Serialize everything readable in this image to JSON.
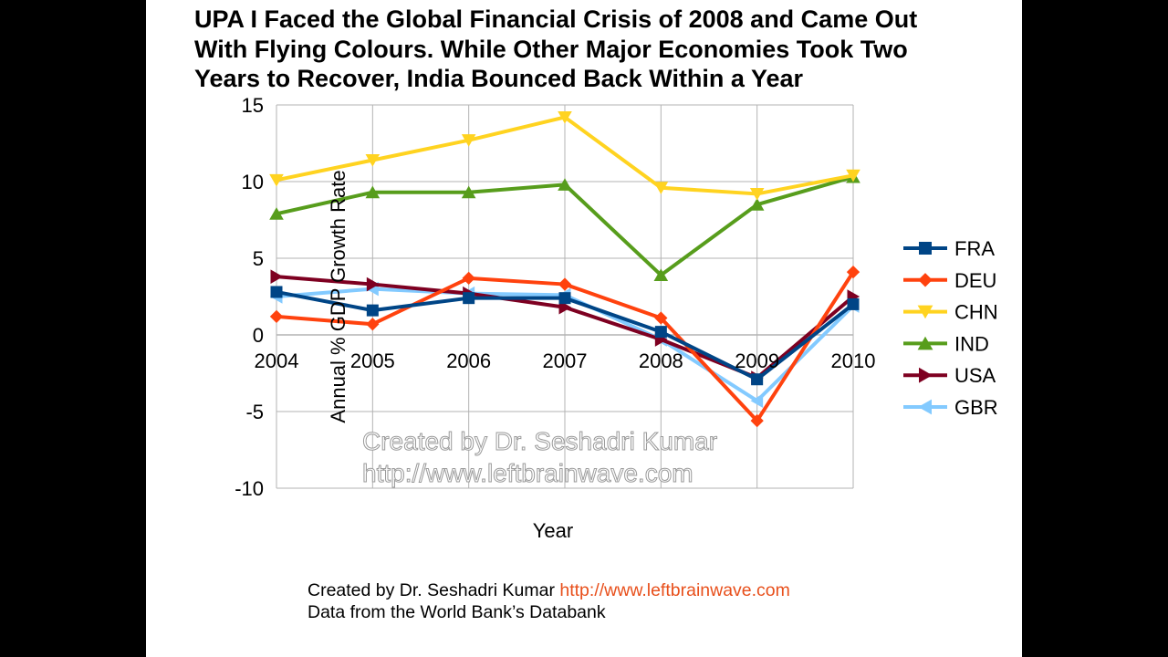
{
  "title_lines": [
    "UPA I Faced the Global Financial Crisis of 2008 and Came Out",
    "With Flying Colours. While Other Major Economies Took Two",
    "Years to Recover, India Bounced Back Within a Year"
  ],
  "watermark": {
    "line1": "Created by Dr. Seshadri Kumar",
    "line2": "http://www.leftbrainwave.com"
  },
  "footer": {
    "credit_text": "Created by Dr. Seshadri Kumar",
    "credit_link": "http://www.leftbrainwave.com",
    "source": "Data from the World Bank’s Databank"
  },
  "colors": {
    "background": "#000000",
    "slide": "#ffffff",
    "grid": "#b3b3b3",
    "link": "#e8501c"
  },
  "chart_data": {
    "type": "line",
    "title": "UPA I Faced the Global Financial Crisis of 2008 and Came Out With Flying Colours. While Other Major Economies Took Two Years to Recover, India Bounced Back Within a Year",
    "xlabel": "Year",
    "ylabel": "Annual % GDP Growth Rate",
    "categories": [
      "2004",
      "2005",
      "2006",
      "2007",
      "2008",
      "2009",
      "2010"
    ],
    "ylim": [
      -10,
      15
    ],
    "yticks": [
      -10,
      -5,
      0,
      5,
      10,
      15
    ],
    "grid": true,
    "legend_position": "right",
    "series": [
      {
        "name": "FRA",
        "color": "#004586",
        "marker": "square",
        "values": [
          2.8,
          1.6,
          2.4,
          2.4,
          0.2,
          -2.9,
          2.0
        ]
      },
      {
        "name": "DEU",
        "color": "#ff420e",
        "marker": "diamond",
        "values": [
          1.2,
          0.7,
          3.7,
          3.3,
          1.1,
          -5.6,
          4.1
        ]
      },
      {
        "name": "CHN",
        "color": "#ffd320",
        "marker": "triangle-down",
        "values": [
          10.1,
          11.4,
          12.7,
          14.2,
          9.6,
          9.2,
          10.4
        ]
      },
      {
        "name": "IND",
        "color": "#579d1c",
        "marker": "triangle-up",
        "values": [
          7.9,
          9.3,
          9.3,
          9.8,
          3.9,
          8.5,
          10.3
        ]
      },
      {
        "name": "USA",
        "color": "#7e0021",
        "marker": "triangle-right",
        "values": [
          3.8,
          3.3,
          2.7,
          1.8,
          -0.3,
          -2.8,
          2.5
        ]
      },
      {
        "name": "GBR",
        "color": "#83caff",
        "marker": "triangle-left",
        "values": [
          2.5,
          3.0,
          2.7,
          2.6,
          -0.3,
          -4.3,
          1.9
        ]
      }
    ]
  }
}
